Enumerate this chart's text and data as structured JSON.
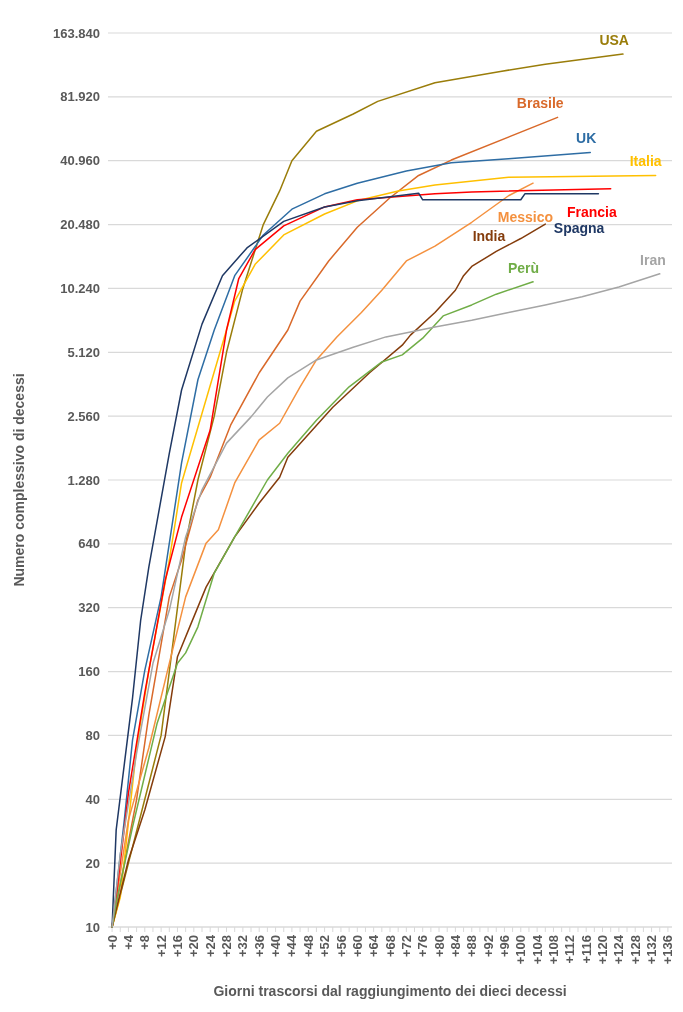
{
  "chart_data": {
    "type": "line",
    "xlabel": "Giorni trascorsi dal raggiungimento dei dieci decessi",
    "ylabel": "Numero complessivo di decessi",
    "log": true,
    "grid": "y",
    "xlim": [
      -1,
      137
    ],
    "ylim": [
      10,
      163840
    ],
    "yticks": [
      10,
      20,
      40,
      80,
      160,
      320,
      640,
      {
        "value": 1280,
        "label": "1.280"
      },
      {
        "value": 2560,
        "label": "2.560"
      },
      {
        "value": 5120,
        "label": "5.120"
      },
      {
        "value": 10240,
        "label": "10.240"
      },
      {
        "value": 20480,
        "label": "20.480"
      },
      {
        "value": 40960,
        "label": "40.960"
      },
      {
        "value": 81920,
        "label": "81.920"
      },
      {
        "value": 163840,
        "label": "163.840"
      }
    ],
    "xticks": [
      {
        "value": 0,
        "label": "+0"
      },
      {
        "value": 2,
        "label": null
      },
      {
        "value": 4,
        "label": "+4"
      },
      {
        "value": 6,
        "label": null
      },
      {
        "value": 8,
        "label": "+8"
      },
      {
        "value": 10,
        "label": null
      },
      {
        "value": 12,
        "label": "+12"
      },
      {
        "value": 14,
        "label": null
      },
      {
        "value": 16,
        "label": "+16"
      },
      {
        "value": 18,
        "label": null
      },
      {
        "value": 20,
        "label": "+20"
      },
      {
        "value": 22,
        "label": null
      },
      {
        "value": 24,
        "label": "+24"
      },
      {
        "value": 26,
        "label": null
      },
      {
        "value": 28,
        "label": "+28"
      },
      {
        "value": 30,
        "label": null
      },
      {
        "value": 32,
        "label": "+32"
      },
      {
        "value": 34,
        "label": null
      },
      {
        "value": 36,
        "label": "+36"
      },
      {
        "value": 38,
        "label": null
      },
      {
        "value": 40,
        "label": "+40"
      },
      {
        "value": 42,
        "label": null
      },
      {
        "value": 44,
        "label": "+44"
      },
      {
        "value": 46,
        "label": null
      },
      {
        "value": 48,
        "label": "+48"
      },
      {
        "value": 50,
        "label": null
      },
      {
        "value": 52,
        "label": "+52"
      },
      {
        "value": 54,
        "label": null
      },
      {
        "value": 56,
        "label": "+56"
      },
      {
        "value": 58,
        "label": null
      },
      {
        "value": 60,
        "label": "+60"
      },
      {
        "value": 62,
        "label": null
      },
      {
        "value": 64,
        "label": "+64"
      },
      {
        "value": 66,
        "label": null
      },
      {
        "value": 68,
        "label": "+68"
      },
      {
        "value": 70,
        "label": null
      },
      {
        "value": 72,
        "label": "+72"
      },
      {
        "value": 74,
        "label": null
      },
      {
        "value": 76,
        "label": "+76"
      },
      {
        "value": 78,
        "label": null
      },
      {
        "value": 80,
        "label": "+80"
      },
      {
        "value": 82,
        "label": null
      },
      {
        "value": 84,
        "label": "+84"
      },
      {
        "value": 86,
        "label": null
      },
      {
        "value": 88,
        "label": "+88"
      },
      {
        "value": 90,
        "label": null
      },
      {
        "value": 92,
        "label": "+92"
      },
      {
        "value": 94,
        "label": null
      },
      {
        "value": 96,
        "label": "+96"
      },
      {
        "value": 98,
        "label": null
      },
      {
        "value": 100,
        "label": "+100"
      },
      {
        "value": 102,
        "label": null
      },
      {
        "value": 104,
        "label": "+104"
      },
      {
        "value": 106,
        "label": null
      },
      {
        "value": 108,
        "label": "+108"
      },
      {
        "value": 110,
        "label": null
      },
      {
        "value": 112,
        "label": "+112"
      },
      {
        "value": 114,
        "label": null
      },
      {
        "value": 116,
        "label": "+116"
      },
      {
        "value": 118,
        "label": null
      },
      {
        "value": 120,
        "label": "+120"
      },
      {
        "value": 122,
        "label": null
      },
      {
        "value": 124,
        "label": "+124"
      },
      {
        "value": 126,
        "label": null
      },
      {
        "value": 128,
        "label": "+128"
      },
      {
        "value": 130,
        "label": null
      },
      {
        "value": 132,
        "label": "+132"
      },
      {
        "value": 134,
        "label": null
      },
      {
        "value": 136,
        "label": "+136"
      }
    ],
    "series": [
      {
        "name": "USA",
        "color": "#9a7d0a",
        "x": [
          0,
          4,
          8,
          12,
          14,
          18,
          21,
          25,
          28,
          32,
          37,
          41,
          44,
          50,
          59,
          65,
          79,
          95,
          106,
          125
        ],
        "values": [
          10,
          20,
          40,
          80,
          160,
          640,
          1280,
          2560,
          5120,
          10240,
          20480,
          29500,
          40960,
          56400,
          68000,
          78000,
          95400,
          108000,
          116600,
          130300
        ]
      },
      {
        "name": "Brasile",
        "color": "#d9692a",
        "x": [
          0,
          3,
          6,
          9,
          14,
          17,
          21,
          24,
          29,
          36,
          43,
          46,
          53,
          60,
          68,
          75,
          83,
          109
        ],
        "values": [
          10,
          20,
          40,
          100,
          360,
          537,
          1030,
          1320,
          2320,
          4100,
          6520,
          8920,
          13800,
          19900,
          27400,
          34900,
          41250,
          65600
        ]
      },
      {
        "name": "UK",
        "color": "#2e6da4",
        "x": [
          0,
          3,
          5,
          8,
          12,
          17,
          21,
          25,
          30,
          37,
          44,
          52,
          60,
          72,
          83,
          97,
          117
        ],
        "values": [
          10,
          32,
          76,
          162,
          360,
          1540,
          3800,
          6520,
          11760,
          18300,
          24200,
          28600,
          32100,
          36600,
          40100,
          41800,
          44800
        ]
      },
      {
        "name": "Italia",
        "color": "#ffc000",
        "x": [
          0,
          2,
          6,
          9,
          14,
          17,
          21,
          28,
          30,
          35,
          42,
          52,
          60,
          70,
          79,
          97,
          133
        ],
        "values": [
          10,
          13.8,
          70,
          162,
          537,
          1240,
          2270,
          6520,
          8920,
          13300,
          18300,
          22960,
          26500,
          29500,
          31500,
          34200,
          34900
        ]
      },
      {
        "name": "Messico",
        "color": "#f4913f",
        "x": [
          0,
          4,
          9,
          14,
          18,
          23,
          26,
          30,
          36,
          41,
          46,
          50,
          55,
          61,
          66,
          72,
          79,
          88,
          97,
          103
        ],
        "values": [
          10,
          32,
          70,
          175,
          360,
          645,
          745,
          1240,
          1980,
          2370,
          3520,
          4710,
          6050,
          7880,
          10040,
          13800,
          16200,
          21000,
          28000,
          32100
        ]
      },
      {
        "name": "Francia",
        "color": "#ff0000",
        "x": [
          0,
          1,
          4,
          8,
          13,
          17,
          24,
          28,
          31,
          35,
          42,
          52,
          60,
          79,
          88,
          122
        ],
        "values": [
          10,
          13.8,
          42.8,
          127,
          431,
          856,
          2200,
          6520,
          11400,
          15600,
          20200,
          24800,
          26800,
          28600,
          29200,
          30200
        ]
      },
      {
        "name": "Spagna",
        "color": "#1f3864",
        "x": [
          0,
          1,
          5,
          7,
          9,
          14,
          17,
          22,
          27,
          33,
          42,
          52,
          60,
          70,
          75,
          76,
          100,
          101,
          119
        ],
        "values": [
          10,
          28.7,
          120,
          280,
          498,
          1710,
          3400,
          6950,
          11760,
          15900,
          21200,
          24800,
          26500,
          28000,
          28800,
          26800,
          26800,
          28600,
          28600
        ]
      },
      {
        "name": "India",
        "color": "#843c0c",
        "x": [
          0,
          4,
          8,
          13,
          16,
          19,
          23,
          30,
          36,
          41,
          43,
          49,
          54,
          63,
          71,
          73,
          79,
          84,
          86,
          88,
          94,
          100,
          106
        ],
        "values": [
          10,
          20.7,
          35.6,
          79,
          188,
          260,
          400,
          690,
          997,
          1320,
          1640,
          2200,
          2820,
          4100,
          5530,
          6170,
          7880,
          10040,
          11760,
          13000,
          15300,
          17600,
          20600
        ]
      },
      {
        "name": "Perù",
        "color": "#70ad47",
        "x": [
          0,
          1,
          5,
          11,
          16,
          18,
          21,
          25,
          30,
          38,
          43,
          50,
          58,
          66,
          71,
          76,
          81,
          88,
          94,
          103
        ],
        "values": [
          10,
          13,
          29.6,
          91,
          175,
          196,
          260,
          466,
          690,
          1280,
          1710,
          2450,
          3520,
          4610,
          4980,
          5970,
          7600,
          8560,
          9620,
          11000
        ]
      },
      {
        "name": "Iran",
        "color": "#a5a5a5",
        "x": [
          0,
          2,
          6,
          10,
          14,
          18,
          22,
          28,
          34,
          38,
          43,
          50,
          59,
          67,
          79,
          88,
          97,
          106,
          115,
          124,
          134
        ],
        "values": [
          10,
          22,
          66,
          175,
          311,
          690,
          1150,
          1910,
          2540,
          3150,
          3880,
          4710,
          5410,
          6050,
          6740,
          7250,
          7880,
          8560,
          9350,
          10400,
          12000
        ]
      }
    ]
  }
}
